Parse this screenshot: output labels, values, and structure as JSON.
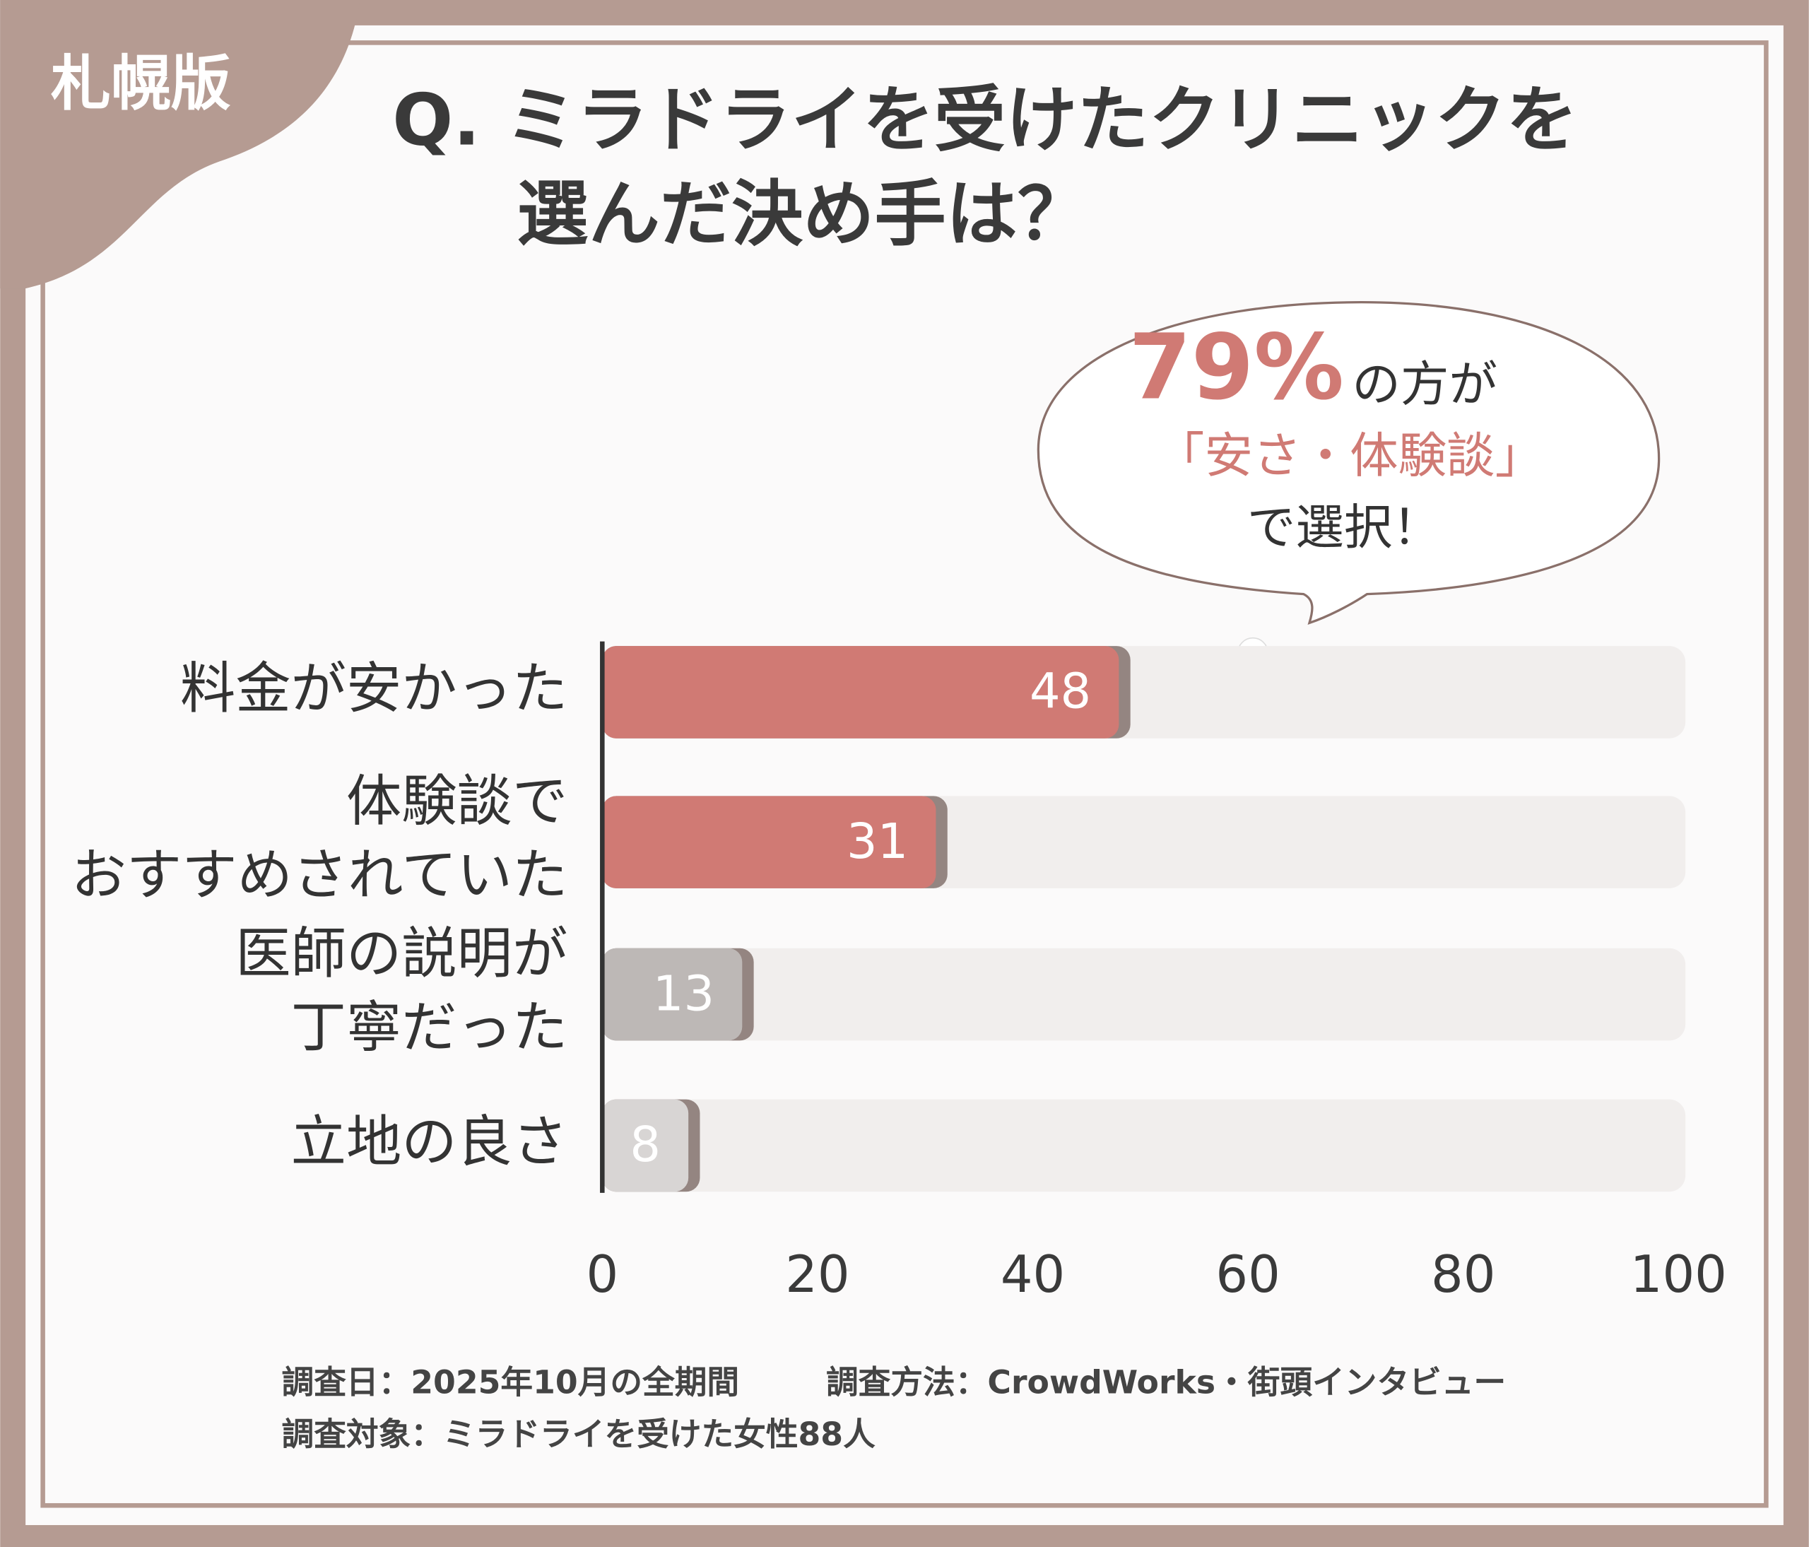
{
  "chart_data": {
    "type": "barh",
    "badge": "札幌版",
    "title": "Q. ミラドライを受けたクリニックを\n選んだ決め手は？",
    "categories": [
      "料金が安かった",
      "体験談で\nおすすめされていた",
      "医師の説明が\n丁寧だった",
      "立地の良さ"
    ],
    "values": [
      48,
      31,
      13,
      8
    ],
    "colors": [
      "#d07a74",
      "#d07a74",
      "#bdb8b6",
      "#d8d5d4"
    ],
    "track_color": "#f1eeed",
    "xlim": [
      0,
      100
    ],
    "xticks": [
      0,
      20,
      40,
      60,
      80,
      100
    ],
    "annotation": {
      "highlight": "79%",
      "lines": [
        "の方が",
        "「安さ・体験談」",
        "で選択！"
      ]
    },
    "notes": [
      "調査日：2025年10月の全期間",
      "調査方法：CrowdWorks・街頭インタビュー",
      "調査対象：ミラドライを受けた女性88人"
    ]
  }
}
